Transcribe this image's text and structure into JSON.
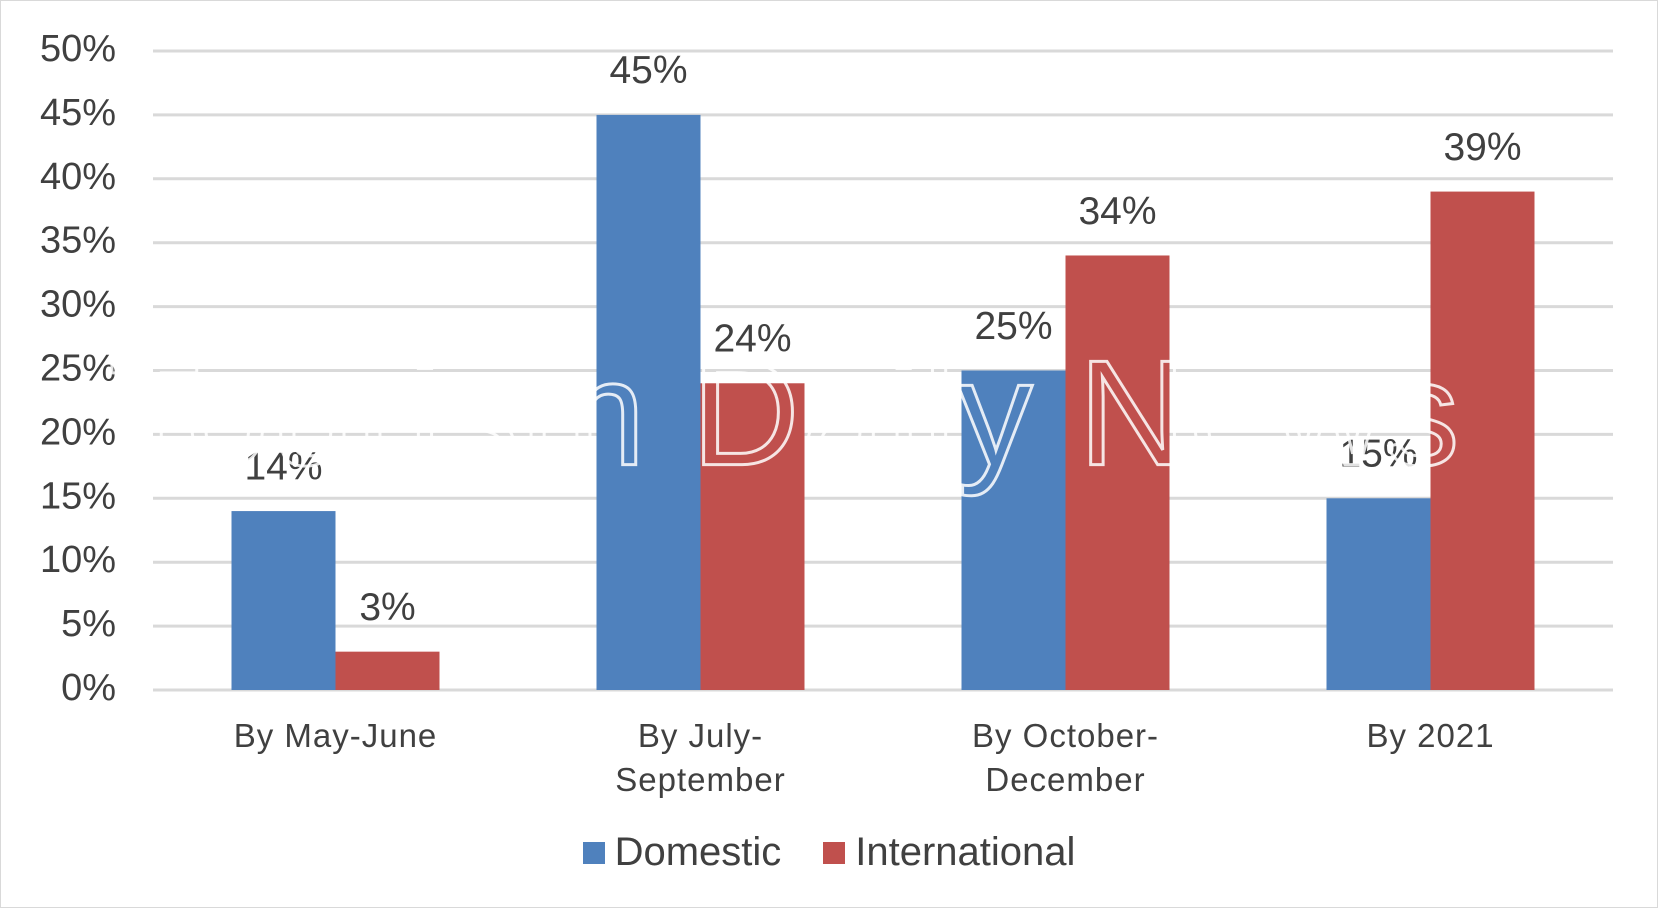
{
  "chart_data": {
    "type": "bar",
    "watermark": "Tourism Daily News",
    "categories": [
      "By May-June",
      "By July-September",
      "By October-December",
      "By 2021"
    ],
    "series": [
      {
        "name": "Domestic",
        "color": "#4f81bd",
        "values": [
          14,
          45,
          25,
          15
        ],
        "value_labels": [
          "14%",
          "45%",
          "25%",
          "15%"
        ]
      },
      {
        "name": "International",
        "color": "#c0504d",
        "values": [
          3,
          24,
          34,
          39
        ],
        "value_labels": [
          "3%",
          "24%",
          "34%",
          "39%"
        ]
      }
    ],
    "ylim": [
      0,
      50
    ],
    "yticks": [
      {
        "value": 0,
        "label": "0%"
      },
      {
        "value": 5,
        "label": "5%"
      },
      {
        "value": 10,
        "label": "10%"
      },
      {
        "value": 15,
        "label": "15%"
      },
      {
        "value": 20,
        "label": "20%"
      },
      {
        "value": 25,
        "label": "25%"
      },
      {
        "value": 30,
        "label": "30%"
      },
      {
        "value": 35,
        "label": "35%"
      },
      {
        "value": 40,
        "label": "40%"
      },
      {
        "value": 45,
        "label": "45%"
      },
      {
        "value": 50,
        "label": "50%"
      }
    ],
    "grid": true,
    "legend": "bottom"
  }
}
